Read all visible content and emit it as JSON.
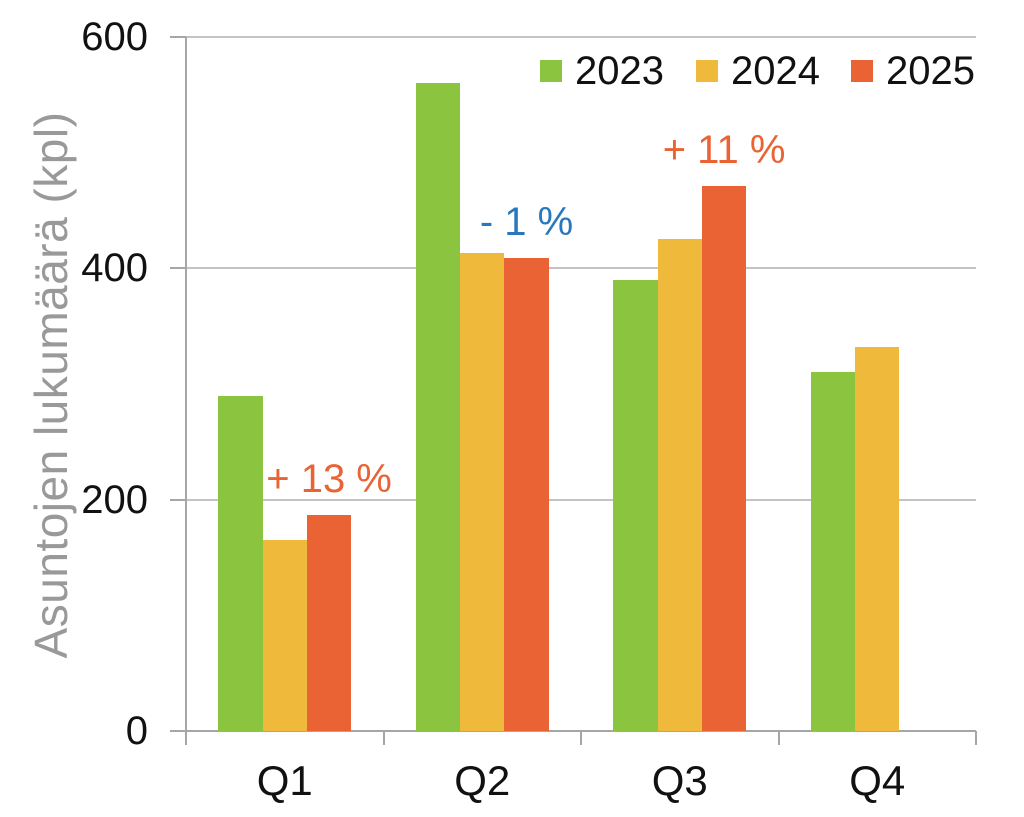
{
  "chart_data": {
    "type": "bar",
    "title": "",
    "xlabel": "",
    "ylabel": "Asuntojen lukumäärä (kpl)",
    "categories": [
      "Q1",
      "Q2",
      "Q3",
      "Q4"
    ],
    "series": [
      {
        "name": "2023",
        "color": "#8bc53f",
        "values": [
          290,
          560,
          390,
          310
        ]
      },
      {
        "name": "2024",
        "color": "#efba3c",
        "values": [
          165,
          413,
          425,
          332
        ]
      },
      {
        "name": "2025",
        "color": "#ea6335",
        "values": [
          187,
          409,
          471,
          null
        ]
      }
    ],
    "ylim": [
      0,
      600
    ],
    "yticks": [
      0,
      200,
      400,
      600
    ],
    "grid": true,
    "legend_position": "top-right-inside",
    "annotations": [
      {
        "text": "+ 13 %",
        "category": "Q1",
        "series": "2025",
        "color": "#ea6335"
      },
      {
        "text": "- 1 %",
        "category": "Q2",
        "series": "2025",
        "color": "#2878be"
      },
      {
        "text": "+ 11 %",
        "category": "Q3",
        "series": "2025",
        "color": "#ea6335"
      }
    ]
  },
  "colors": {
    "axis_line": "#a6a6a6",
    "gridline": "#c4c4c4",
    "tick_label": "#111111",
    "axis_title": "#999999",
    "background": "#ffffff"
  }
}
